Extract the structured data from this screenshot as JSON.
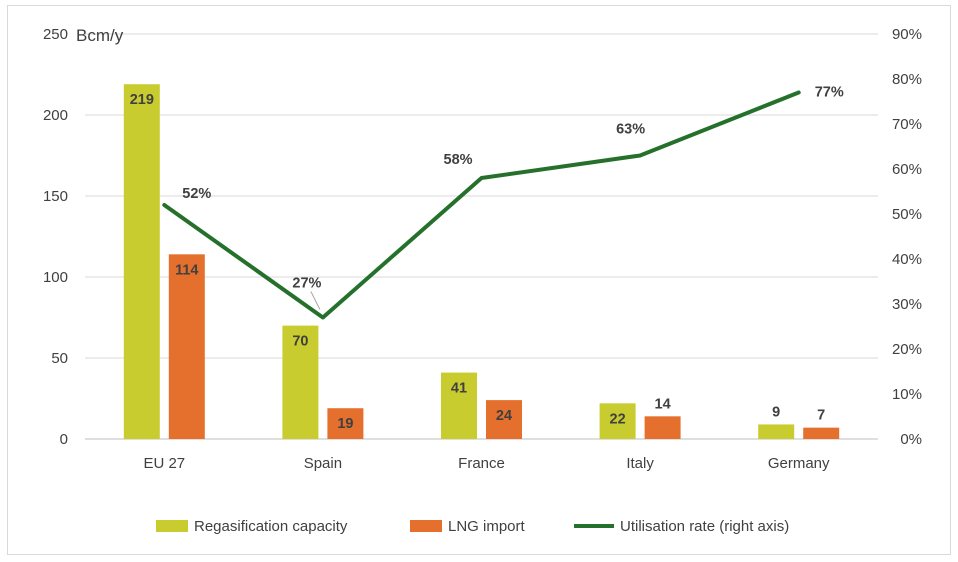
{
  "chart_data": {
    "type": "bar",
    "categories": [
      "EU 27",
      "Spain",
      "France",
      "Italy",
      "Germany"
    ],
    "series": [
      {
        "name": "Regasification capacity",
        "kind": "bar",
        "axis": "left",
        "color": "#c9cc2f",
        "values": [
          219,
          70,
          41,
          22,
          9
        ],
        "labels": [
          "219",
          "70",
          "41",
          "22",
          "9"
        ]
      },
      {
        "name": "LNG import",
        "kind": "bar",
        "axis": "left",
        "color": "#e56f2c",
        "values": [
          114,
          19,
          24,
          14,
          7
        ],
        "labels": [
          "114",
          "19",
          "24",
          "14",
          "7"
        ]
      },
      {
        "name": "Utilisation rate (right axis)",
        "kind": "line",
        "axis": "right",
        "color": "#25712b",
        "values": [
          52,
          27,
          58,
          63,
          77
        ],
        "labels": [
          "52%",
          "27%",
          "58%",
          "63%",
          "77%"
        ]
      }
    ],
    "ylabel": "Bcm/y",
    "ylim": [
      0,
      250
    ],
    "yticks": [
      "0",
      "50",
      "100",
      "150",
      "200",
      "250"
    ],
    "y2lim": [
      0,
      90
    ],
    "y2ticks": [
      "0%",
      "10%",
      "20%",
      "30%",
      "40%",
      "50%",
      "60%",
      "70%",
      "80%",
      "90%"
    ],
    "grid": true,
    "legend_position": "bottom"
  }
}
